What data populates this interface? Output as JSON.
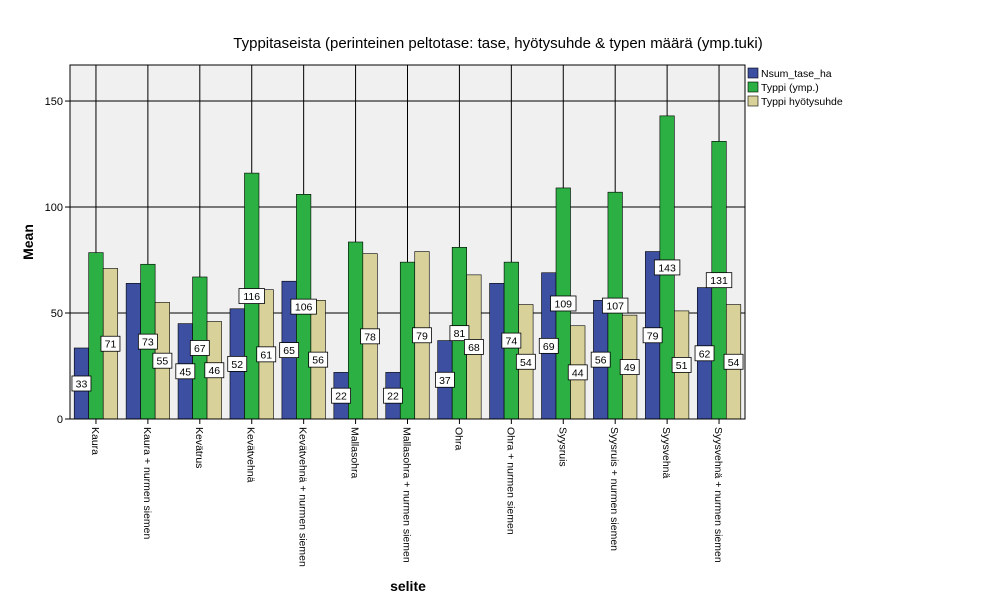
{
  "colors": {
    "plot_bg": "#f0f0f0",
    "axis": "#000000",
    "grid": "#000000",
    "label_box_fill": "#ffffff",
    "series": [
      "#3c4fa0",
      "#2cb043",
      "#d8d29a"
    ]
  },
  "chart_data": {
    "type": "bar",
    "title": "Typpitaseista (perinteinen peltotase: tase, hyötysuhde & typen määrä (ymp.tuki)",
    "xlabel": "selite",
    "ylabel": "Mean",
    "ylim": [
      0,
      167
    ],
    "yticks": [
      0,
      50,
      100,
      150
    ],
    "grid": "horizontal major lines; vertical line at each category",
    "legend_position": "right",
    "categories": [
      "Kaura",
      "Kaura + nurmen siemen",
      "Kevätrus",
      "Kevätvehnä",
      "Kevätvehnä + nurmen siemen",
      "Mallasohra",
      "Mallasohra + nurmen siemen",
      "Ohra",
      "Ohra + nurmen siemen",
      "Syysruis",
      "Syysruis + nurmen siemen",
      "Syysvehnä",
      "Syysvehnä + nurmen siemen"
    ],
    "series": [
      {
        "name": "Nsum_tase_ha",
        "values": [
          33.5,
          64,
          45,
          52,
          65,
          22,
          22,
          37,
          64,
          69,
          56,
          79,
          62
        ],
        "labels": [
          "33",
          "",
          "45",
          "52",
          "65",
          "22",
          "22",
          "37",
          "",
          "69",
          "56",
          "79",
          "62"
        ]
      },
      {
        "name": "Typpi (ymp.)",
        "values": [
          78.5,
          73,
          67,
          116,
          106,
          83.5,
          74,
          81,
          74,
          109,
          107,
          143,
          131
        ],
        "labels": [
          "",
          "73",
          "67",
          "116",
          "106",
          "",
          "",
          "81",
          "74",
          "109",
          "107",
          "143",
          "131"
        ]
      },
      {
        "name": "Typpi hyötysuhde",
        "values": [
          71,
          55,
          46,
          61,
          56,
          78,
          79,
          68,
          54,
          44,
          49,
          51,
          54
        ],
        "labels": [
          "71",
          "55",
          "46",
          "61",
          "56",
          "78",
          "79",
          "68",
          "54",
          "44",
          "49",
          "51",
          "54"
        ]
      }
    ]
  }
}
